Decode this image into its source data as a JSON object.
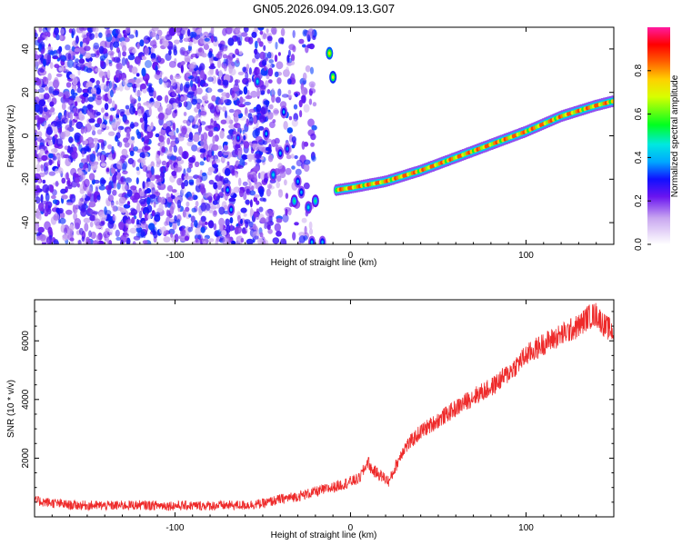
{
  "figure_title": "GN05.2026.094.09.13.G07",
  "chart_data": [
    {
      "type": "heatmap",
      "title": "GN05.2026.094.09.13.G07",
      "xlabel": "Height of straight line (km)",
      "ylabel": "Frequency (Hz)",
      "xlim": [
        -180,
        150
      ],
      "ylim": [
        -50,
        50
      ],
      "x_ticks": [
        -100,
        0,
        100
      ],
      "x_tick_labels": [
        "-100",
        "0",
        "100"
      ],
      "y_ticks": [
        -40,
        -20,
        0,
        20,
        40
      ],
      "y_tick_labels": [
        "-40",
        "-20",
        "0",
        "20",
        "40"
      ],
      "colorbar": {
        "label": "Normalized spectral amplitude",
        "range": [
          0,
          1
        ],
        "ticks": [
          0,
          0.2,
          0.4,
          0.6,
          0.8
        ],
        "tick_labels": [
          "0.0",
          "0.2",
          "0.4",
          "0.6",
          "0.8"
        ]
      },
      "noise_region": {
        "x_range": [
          -180,
          -45
        ],
        "freq_range": [
          -50,
          50
        ],
        "amplitude": 0.15
      },
      "scattered_peaks": [
        {
          "x": -12,
          "freq": 38,
          "amp": 0.75
        },
        {
          "x": -10,
          "freq": 27,
          "amp": 0.7
        },
        {
          "x": -53,
          "freq": 25,
          "amp": 0.45
        },
        {
          "x": -38,
          "freq": 11,
          "amp": 0.4
        },
        {
          "x": -48,
          "freq": 1,
          "amp": 0.4
        },
        {
          "x": -64,
          "freq": -1,
          "amp": 0.35
        },
        {
          "x": -36,
          "freq": -6,
          "amp": 0.35
        },
        {
          "x": -40,
          "freq": -8,
          "amp": 0.4
        },
        {
          "x": -44,
          "freq": -18,
          "amp": 0.45
        },
        {
          "x": -30,
          "freq": -21,
          "amp": 0.4
        },
        {
          "x": -70,
          "freq": -25,
          "amp": 0.4
        },
        {
          "x": -28,
          "freq": -26,
          "amp": 0.4
        },
        {
          "x": -32,
          "freq": -30,
          "amp": 0.5
        },
        {
          "x": -20,
          "freq": -30,
          "amp": 0.5
        },
        {
          "x": -24,
          "freq": -33,
          "amp": 0.45
        },
        {
          "x": -68,
          "freq": -34,
          "amp": 0.4
        },
        {
          "x": -22,
          "freq": -49,
          "amp": 0.4
        },
        {
          "x": -16,
          "freq": -49,
          "amp": 0.4
        }
      ],
      "ridge": {
        "x": [
          -8,
          0,
          20,
          40,
          60,
          80,
          100,
          120,
          140,
          150
        ],
        "freq": [
          -25,
          -24,
          -21,
          -16,
          -10,
          -4,
          2,
          9,
          14,
          16
        ],
        "amplitude": 0.9
      }
    },
    {
      "type": "line",
      "xlabel": "Height of straight line (km)",
      "ylabel": "SNR (10 * v/v)",
      "xlim": [
        -180,
        150
      ],
      "ylim": [
        0,
        7400
      ],
      "x_ticks": [
        -100,
        0,
        100
      ],
      "x_tick_labels": [
        "-100",
        "0",
        "100"
      ],
      "y_ticks": [
        2000,
        4000,
        6000
      ],
      "y_tick_labels": [
        "2000",
        "4000",
        "6000"
      ],
      "color": "#ee2a2a",
      "series": [
        {
          "name": "SNR",
          "x": [
            -180,
            -160,
            -140,
            -120,
            -100,
            -80,
            -60,
            -50,
            -40,
            -30,
            -20,
            -10,
            0,
            5,
            8,
            10,
            12,
            15,
            20,
            22,
            30,
            40,
            50,
            60,
            70,
            80,
            90,
            100,
            110,
            120,
            130,
            135,
            140,
            145,
            150
          ],
          "y": [
            550,
            400,
            380,
            400,
            380,
            380,
            400,
            450,
            600,
            700,
            850,
            1000,
            1200,
            1300,
            1650,
            1900,
            1600,
            1500,
            1300,
            1200,
            2300,
            2900,
            3300,
            3700,
            4100,
            4400,
            4900,
            5500,
            5900,
            6200,
            6500,
            6800,
            6900,
            6500,
            6300
          ],
          "noise_amplitude": 250
        }
      ]
    }
  ]
}
